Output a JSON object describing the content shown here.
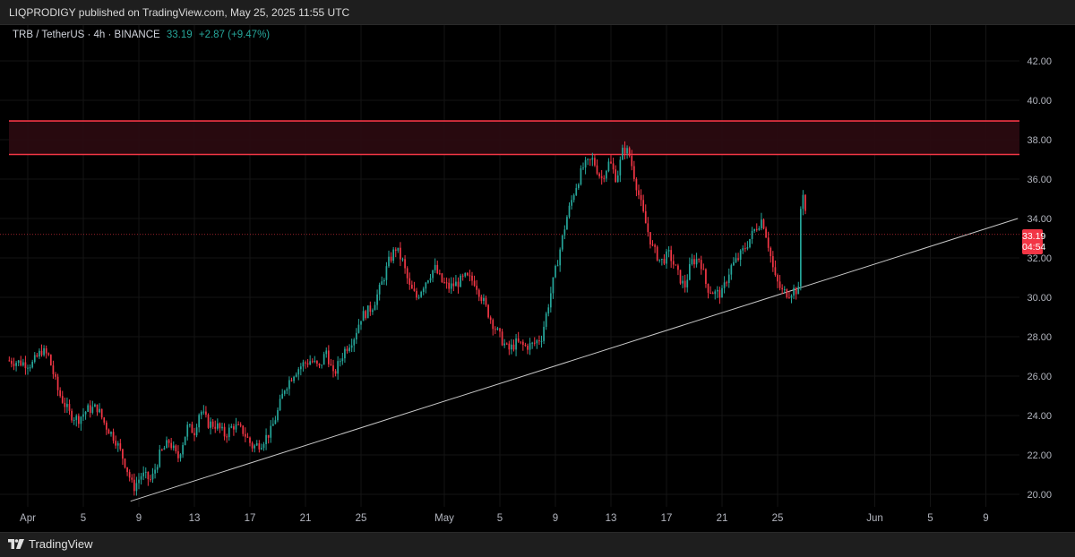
{
  "header": {
    "published_text": "LIQPRODIGY published on TradingView.com, May 25, 2025 11:55 UTC"
  },
  "legend": {
    "symbol_text": "TRB / TetherUS · 4h · BINANCE",
    "price": "33.19",
    "change": "+2.87 (+9.47%)"
  },
  "price_tag": {
    "price": "33.19",
    "countdown": "04:54"
  },
  "footer": {
    "brand": "TradingView"
  },
  "colors": {
    "up": "#26a69a",
    "down": "#f23645",
    "zone_line": "#f23645",
    "zone_fill": "#2a0a10",
    "trendline": "#c8c8c8",
    "grid": "#141414"
  },
  "chart_data": {
    "type": "candlestick",
    "title": "",
    "xlabel": "",
    "ylabel": "",
    "ylim": [
      19.6,
      43.2
    ],
    "grid": true,
    "y_ticks": [
      20,
      22,
      24,
      26,
      28,
      30,
      32,
      34,
      36,
      38,
      40,
      42
    ],
    "x_ticks": [
      {
        "label": "Apr",
        "day": 0
      },
      {
        "label": "5",
        "day": 4
      },
      {
        "label": "9",
        "day": 8
      },
      {
        "label": "13",
        "day": 12
      },
      {
        "label": "17",
        "day": 16
      },
      {
        "label": "21",
        "day": 20
      },
      {
        "label": "25",
        "day": 24
      },
      {
        "label": "May",
        "day": 30
      },
      {
        "label": "5",
        "day": 34
      },
      {
        "label": "9",
        "day": 38
      },
      {
        "label": "13",
        "day": 42
      },
      {
        "label": "17",
        "day": 46
      },
      {
        "label": "21",
        "day": 50
      },
      {
        "label": "25",
        "day": 54
      },
      {
        "label": "Jun",
        "day": 61
      },
      {
        "label": "5",
        "day": 65
      },
      {
        "label": "9",
        "day": 69
      }
    ],
    "resistance_zone": {
      "low": 37.25,
      "high": 38.95
    },
    "trendline": [
      {
        "day": 7.4,
        "price": 19.65
      },
      {
        "day": 71.3,
        "price": 34.0
      }
    ],
    "last_price": 33.19,
    "close_path": [
      [
        -1.5,
        26.8
      ],
      [
        0.3,
        26.6
      ],
      [
        1.0,
        27.3
      ],
      [
        1.5,
        27.0
      ],
      [
        2.2,
        25.2
      ],
      [
        3.0,
        24.1
      ],
      [
        3.6,
        23.8
      ],
      [
        4.3,
        24.3
      ],
      [
        5.0,
        24.4
      ],
      [
        5.6,
        23.5
      ],
      [
        6.3,
        22.8
      ],
      [
        7.0,
        21.6
      ],
      [
        7.6,
        20.3
      ],
      [
        8.2,
        21.0
      ],
      [
        8.9,
        20.7
      ],
      [
        9.5,
        22.0
      ],
      [
        10.2,
        22.7
      ],
      [
        10.8,
        21.8
      ],
      [
        11.5,
        23.4
      ],
      [
        12.0,
        23.2
      ],
      [
        12.4,
        24.3
      ],
      [
        13.0,
        23.6
      ],
      [
        13.6,
        23.5
      ],
      [
        14.2,
        23.0
      ],
      [
        14.8,
        23.5
      ],
      [
        15.5,
        23.2
      ],
      [
        16.2,
        22.4
      ],
      [
        16.8,
        22.6
      ],
      [
        17.5,
        23.2
      ],
      [
        18.0,
        24.2
      ],
      [
        18.5,
        25.4
      ],
      [
        19.2,
        26.2
      ],
      [
        19.8,
        26.6
      ],
      [
        20.4,
        26.8
      ],
      [
        21.0,
        26.4
      ],
      [
        21.5,
        27.3
      ],
      [
        22.0,
        26.0
      ],
      [
        22.8,
        27.3
      ],
      [
        23.5,
        28.0
      ],
      [
        24.0,
        29.0
      ],
      [
        24.8,
        29.5
      ],
      [
        25.4,
        30.5
      ],
      [
        26.0,
        31.8
      ],
      [
        26.5,
        32.5
      ],
      [
        27.0,
        31.8
      ],
      [
        27.5,
        30.5
      ],
      [
        28.0,
        30.0
      ],
      [
        28.8,
        31.0
      ],
      [
        29.3,
        31.5
      ],
      [
        29.8,
        30.8
      ],
      [
        30.3,
        30.5
      ],
      [
        30.9,
        30.7
      ],
      [
        31.5,
        31.0
      ],
      [
        32.2,
        30.8
      ],
      [
        32.8,
        29.8
      ],
      [
        33.4,
        28.8
      ],
      [
        34.0,
        28.0
      ],
      [
        34.6,
        27.3
      ],
      [
        35.2,
        27.7
      ],
      [
        35.8,
        27.5
      ],
      [
        36.4,
        27.6
      ],
      [
        37.0,
        28.0
      ],
      [
        37.6,
        30.0
      ],
      [
        38.2,
        32.0
      ],
      [
        38.8,
        34.0
      ],
      [
        39.4,
        35.5
      ],
      [
        40.0,
        36.6
      ],
      [
        40.7,
        37.0
      ],
      [
        41.3,
        36.0
      ],
      [
        41.9,
        36.9
      ],
      [
        42.4,
        36.0
      ],
      [
        42.9,
        37.6
      ],
      [
        43.3,
        37.3
      ],
      [
        43.9,
        35.5
      ],
      [
        44.4,
        34.0
      ],
      [
        45.0,
        32.5
      ],
      [
        45.6,
        31.8
      ],
      [
        46.2,
        32.2
      ],
      [
        46.8,
        31.2
      ],
      [
        47.3,
        30.5
      ],
      [
        47.8,
        31.8
      ],
      [
        48.4,
        32.0
      ],
      [
        48.9,
        30.5
      ],
      [
        49.5,
        30.2
      ],
      [
        50.0,
        30.2
      ],
      [
        50.6,
        31.5
      ],
      [
        51.2,
        32.0
      ],
      [
        51.8,
        32.7
      ],
      [
        52.4,
        33.5
      ],
      [
        52.9,
        34.0
      ],
      [
        53.3,
        32.8
      ],
      [
        53.8,
        31.0
      ],
      [
        54.3,
        30.3
      ],
      [
        54.8,
        30.2
      ],
      [
        55.2,
        30.4
      ],
      [
        55.55,
        30.3
      ],
      [
        55.7,
        35.7
      ],
      [
        55.9,
        35.2
      ],
      [
        56.15,
        33.19
      ]
    ]
  }
}
